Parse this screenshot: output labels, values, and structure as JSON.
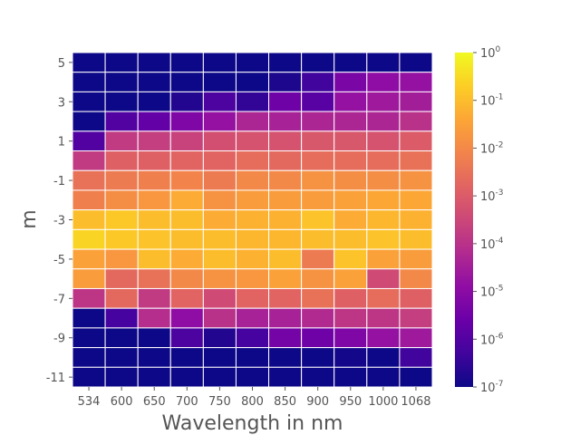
{
  "chart_data": {
    "type": "heatmap",
    "xlabel": "Wavelength in nm",
    "ylabel": "m",
    "x_categories": [
      "534",
      "600",
      "650",
      "700",
      "750",
      "800",
      "850",
      "900",
      "950",
      "1000",
      "1068"
    ],
    "y_categories": [
      5,
      4,
      3,
      2,
      1,
      0,
      -1,
      -2,
      -3,
      -4,
      -5,
      -6,
      -7,
      -8,
      -9,
      -10,
      -11
    ],
    "y_tick_labels": [
      "5",
      "3",
      "1",
      "-1",
      "-3",
      "-5",
      "-7",
      "-9",
      "-11"
    ],
    "colorscale": "plasma",
    "scale": "log",
    "color_range": [
      1e-07,
      1
    ],
    "colorbar_ticks": [
      {
        "base": "10",
        "exp": "0"
      },
      {
        "base": "10",
        "exp": "-1"
      },
      {
        "base": "10",
        "exp": "-2"
      },
      {
        "base": "10",
        "exp": "-3"
      },
      {
        "base": "10",
        "exp": "-4"
      },
      {
        "base": "10",
        "exp": "-5"
      },
      {
        "base": "10",
        "exp": "-6"
      },
      {
        "base": "10",
        "exp": "-7"
      }
    ],
    "values_log10": [
      [
        -7,
        -7,
        -7,
        -7,
        -7,
        -7,
        -7,
        -7,
        -7,
        -7,
        -7
      ],
      [
        -7,
        -7,
        -7,
        -7,
        -7,
        -7,
        -6.8,
        -6.3,
        -5.3,
        -4.9,
        -4.8
      ],
      [
        -7,
        -7,
        -7,
        -6.7,
        -6.1,
        -6.5,
        -5.5,
        -5.9,
        -4.8,
        -4.6,
        -4.5
      ],
      [
        -7,
        -6.0,
        -5.7,
        -5.2,
        -4.8,
        -4.3,
        -4.4,
        -4.3,
        -4.3,
        -4.3,
        -4.0
      ],
      [
        -6.0,
        -3.8,
        -3.7,
        -3.6,
        -3.3,
        -3.2,
        -3.2,
        -3.1,
        -3.1,
        -3.2,
        -3.0
      ],
      [
        -3.8,
        -2.9,
        -2.9,
        -2.8,
        -2.8,
        -2.6,
        -2.7,
        -2.6,
        -2.6,
        -2.6,
        -2.5
      ],
      [
        -2.5,
        -2.3,
        -2.2,
        -2.1,
        -2.3,
        -2.0,
        -2.0,
        -1.8,
        -1.9,
        -1.9,
        -1.8
      ],
      [
        -2.2,
        -1.9,
        -1.7,
        -1.3,
        -1.8,
        -1.6,
        -1.6,
        -1.6,
        -1.5,
        -1.4,
        -1.4
      ],
      [
        -1.0,
        -0.8,
        -1.0,
        -1.0,
        -1.3,
        -1.2,
        -1.2,
        -0.9,
        -1.3,
        -1.1,
        -1.2
      ],
      [
        -0.6,
        -0.8,
        -0.9,
        -1.0,
        -1.0,
        -1.1,
        -1.1,
        -1.0,
        -1.0,
        -0.9,
        -1.0
      ],
      [
        -1.5,
        -1.7,
        -1.0,
        -1.3,
        -1.0,
        -1.2,
        -1.0,
        -2.3,
        -0.9,
        -1.5,
        -1.6
      ],
      [
        -1.6,
        -2.7,
        -2.5,
        -2.0,
        -1.8,
        -1.7,
        -1.5,
        -1.8,
        -1.5,
        -3.4,
        -2.0
      ],
      [
        -3.9,
        -2.7,
        -3.8,
        -2.8,
        -3.4,
        -2.8,
        -2.8,
        -2.5,
        -2.9,
        -2.6,
        -2.9
      ],
      [
        -7,
        -6.2,
        -4.1,
        -4.9,
        -4.0,
        -4.4,
        -4.4,
        -4.2,
        -3.9,
        -3.9,
        -3.7
      ],
      [
        -7,
        -7,
        -7,
        -6.1,
        -6.7,
        -6.2,
        -5.4,
        -5.5,
        -5.2,
        -4.8,
        -4.6
      ],
      [
        -7,
        -7,
        -7,
        -7,
        -7,
        -7,
        -7,
        -7,
        -6.9,
        -7,
        -6.3
      ],
      [
        -7,
        -7,
        -7,
        -7,
        -7,
        -7,
        -7,
        -7,
        -7,
        -7,
        -7
      ]
    ]
  }
}
